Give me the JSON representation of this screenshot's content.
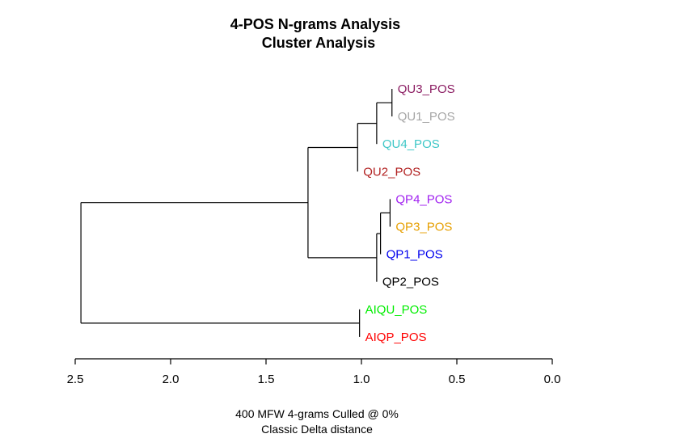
{
  "chart_data": {
    "type": "dendrogram",
    "title_line1": "4-POS N-grams Analysis",
    "title_line2": "Cluster Analysis",
    "xlabel_line1": "400 MFW 4-grams Culled @ 0%",
    "xlabel_line2": "Classic Delta distance",
    "xlim": [
      2.5,
      0.0
    ],
    "xticks": [
      "2.5",
      "2.0",
      "1.5",
      "1.0",
      "0.5",
      "0.0"
    ],
    "tick_values": [
      2.5,
      2.0,
      1.5,
      1.0,
      0.5,
      0.0
    ],
    "leaves": [
      {
        "label": "QU3_POS",
        "color": "#8B1C62"
      },
      {
        "label": "QU1_POS",
        "color": "#A6A6A6"
      },
      {
        "label": "QU4_POS",
        "color": "#3EC7C7"
      },
      {
        "label": "QU2_POS",
        "color": "#B22222"
      },
      {
        "label": "QP4_POS",
        "color": "#A020F0"
      },
      {
        "label": "QP3_POS",
        "color": "#E69F00"
      },
      {
        "label": "QP1_POS",
        "color": "#0000EE"
      },
      {
        "label": "QP2_POS",
        "color": "#000000"
      },
      {
        "label": "AIQU_POS",
        "color": "#00EE00"
      },
      {
        "label": "AIQP_POS",
        "color": "#FF0000"
      }
    ],
    "merges": [
      {
        "id": "m1",
        "a": "QU3_POS",
        "b": "QU1_POS",
        "height": 0.84
      },
      {
        "id": "m2",
        "a": "m1",
        "b": "QU4_POS",
        "height": 0.92
      },
      {
        "id": "m3",
        "a": "m2",
        "b": "QU2_POS",
        "height": 1.02
      },
      {
        "id": "m4",
        "a": "QP4_POS",
        "b": "QP3_POS",
        "height": 0.85
      },
      {
        "id": "m5",
        "a": "m4",
        "b": "QP1_POS",
        "height": 0.9
      },
      {
        "id": "m6",
        "a": "m5",
        "b": "QP2_POS",
        "height": 0.92
      },
      {
        "id": "m7",
        "a": "m3",
        "b": "m6",
        "height": 1.28
      },
      {
        "id": "m8",
        "a": "AIQU_POS",
        "b": "AIQP_POS",
        "height": 1.01
      },
      {
        "id": "m9",
        "a": "m7",
        "b": "m8",
        "height": 2.47
      }
    ]
  }
}
